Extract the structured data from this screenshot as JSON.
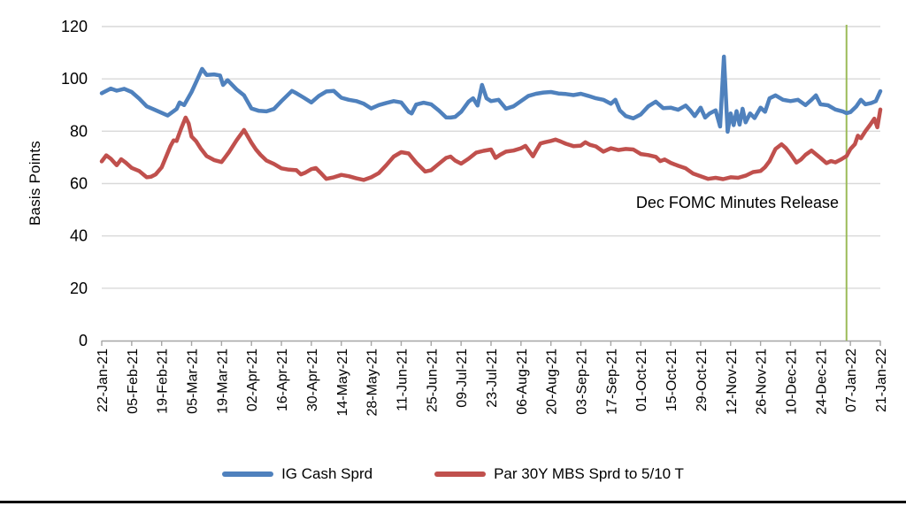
{
  "chart_data": {
    "type": "line",
    "title": "",
    "ylabel": "Basis Points",
    "ylim": [
      0,
      120
    ],
    "y_ticks": [
      0,
      20,
      40,
      60,
      80,
      100,
      120
    ],
    "grid": "horizontal",
    "legend_position": "bottom",
    "x_range_weeks": [
      0,
      52
    ],
    "x_tick_labels": [
      "22-Jan-21",
      "05-Feb-21",
      "19-Feb-21",
      "05-Mar-21",
      "19-Mar-21",
      "02-Apr-21",
      "16-Apr-21",
      "30-Apr-21",
      "14-May-21",
      "28-May-21",
      "11-Jun-21",
      "25-Jun-21",
      "09-Jul-21",
      "23-Jul-21",
      "06-Aug-21",
      "20-Aug-21",
      "03-Sep-21",
      "17-Sep-21",
      "01-Oct-21",
      "15-Oct-21",
      "29-Oct-21",
      "12-Nov-21",
      "26-Nov-21",
      "10-Dec-21",
      "24-Dec-21",
      "07-Jan-22",
      "21-Jan-22"
    ],
    "annotation": {
      "text": "Dec FOMC Minutes Release",
      "line_x_week": 49.74,
      "line_color": "#9BBB59"
    },
    "colors": {
      "gridline": "#D9D9D9",
      "axis": "#A6A6A6",
      "tick": "#A6A6A6",
      "text": "#000000",
      "background": "#FFFFFF"
    },
    "series": [
      {
        "name": "IG Cash Sprd",
        "color": "#4F81BD",
        "points": [
          [
            0,
            94.5
          ],
          [
            0.6,
            96.3
          ],
          [
            1,
            95.5
          ],
          [
            1.5,
            96.2
          ],
          [
            2,
            95
          ],
          [
            2.5,
            92.5
          ],
          [
            3,
            89.5
          ],
          [
            3.5,
            88.3
          ],
          [
            4,
            87
          ],
          [
            4.4,
            86
          ],
          [
            5,
            88.5
          ],
          [
            5.2,
            91
          ],
          [
            5.5,
            90
          ],
          [
            6,
            95
          ],
          [
            6.4,
            100
          ],
          [
            6.7,
            103.8
          ],
          [
            7,
            101.5
          ],
          [
            7.5,
            101.7
          ],
          [
            7.9,
            101.3
          ],
          [
            8.1,
            97.7
          ],
          [
            8.4,
            99.5
          ],
          [
            9,
            96
          ],
          [
            9.5,
            93.7
          ],
          [
            10,
            88.7
          ],
          [
            10.5,
            87.8
          ],
          [
            11,
            87.6
          ],
          [
            11.5,
            88.5
          ],
          [
            12,
            91.5
          ],
          [
            12.7,
            95.4
          ],
          [
            13,
            94.5
          ],
          [
            13.5,
            92.8
          ],
          [
            14,
            91
          ],
          [
            14.5,
            93.5
          ],
          [
            15,
            95.2
          ],
          [
            15.5,
            95.4
          ],
          [
            16,
            92.8
          ],
          [
            16.5,
            92
          ],
          [
            17,
            91.5
          ],
          [
            17.5,
            90.5
          ],
          [
            18,
            88.7
          ],
          [
            18.5,
            90
          ],
          [
            19,
            90.8
          ],
          [
            19.5,
            91.5
          ],
          [
            20,
            91
          ],
          [
            20.5,
            87.4
          ],
          [
            20.7,
            86.8
          ],
          [
            21,
            90.2
          ],
          [
            21.5,
            90.9
          ],
          [
            22,
            90.3
          ],
          [
            22.5,
            88
          ],
          [
            23,
            85.3
          ],
          [
            23.3,
            85.2
          ],
          [
            23.6,
            85.5
          ],
          [
            24,
            87.4
          ],
          [
            24.5,
            91.3
          ],
          [
            24.8,
            92.6
          ],
          [
            25.1,
            89.8
          ],
          [
            25.4,
            97.7
          ],
          [
            25.7,
            92.6
          ],
          [
            26,
            91.5
          ],
          [
            26.5,
            92
          ],
          [
            27,
            88.6
          ],
          [
            27.5,
            89.5
          ],
          [
            28,
            91.5
          ],
          [
            28.5,
            93.5
          ],
          [
            29,
            94.3
          ],
          [
            29.5,
            94.8
          ],
          [
            30,
            95
          ],
          [
            30.5,
            94.4
          ],
          [
            31,
            94.2
          ],
          [
            31.5,
            93.8
          ],
          [
            32,
            94.3
          ],
          [
            32.5,
            93.5
          ],
          [
            33,
            92.6
          ],
          [
            33.5,
            92
          ],
          [
            34,
            90.5
          ],
          [
            34.3,
            92
          ],
          [
            34.6,
            88
          ],
          [
            35,
            85.8
          ],
          [
            35.5,
            84.9
          ],
          [
            36,
            86.4
          ],
          [
            36.5,
            89.5
          ],
          [
            37,
            91.3
          ],
          [
            37.5,
            88.8
          ],
          [
            38,
            89
          ],
          [
            38.5,
            88.2
          ],
          [
            39,
            89.8
          ],
          [
            39.3,
            88
          ],
          [
            39.6,
            85.8
          ],
          [
            40,
            89
          ],
          [
            40.3,
            85.2
          ],
          [
            40.6,
            86.8
          ],
          [
            41,
            88
          ],
          [
            41.3,
            81.8
          ],
          [
            41.55,
            108.5
          ],
          [
            41.8,
            79.8
          ],
          [
            42,
            86.8
          ],
          [
            42.2,
            82.3
          ],
          [
            42.4,
            87.7
          ],
          [
            42.6,
            82.5
          ],
          [
            42.8,
            88.6
          ],
          [
            43,
            83.4
          ],
          [
            43.3,
            86.8
          ],
          [
            43.6,
            85
          ],
          [
            44,
            89
          ],
          [
            44.3,
            87.4
          ],
          [
            44.6,
            92.6
          ],
          [
            45,
            93.7
          ],
          [
            45.5,
            92
          ],
          [
            46,
            91.5
          ],
          [
            46.5,
            92
          ],
          [
            47,
            90
          ],
          [
            47.4,
            92
          ],
          [
            47.7,
            93.7
          ],
          [
            48,
            90.3
          ],
          [
            48.5,
            89.9
          ],
          [
            49,
            88.3
          ],
          [
            49.5,
            87.5
          ],
          [
            49.74,
            86.9
          ],
          [
            50,
            87.3
          ],
          [
            50.4,
            89.5
          ],
          [
            50.7,
            92
          ],
          [
            51,
            90.3
          ],
          [
            51.4,
            90.8
          ],
          [
            51.7,
            91.5
          ],
          [
            52,
            95.3
          ]
        ]
      },
      {
        "name": "Par 30Y MBS Sprd to 5/10 T",
        "color": "#C0504D",
        "points": [
          [
            0,
            68.5
          ],
          [
            0.3,
            70.8
          ],
          [
            0.6,
            69.5
          ],
          [
            1,
            67
          ],
          [
            1.3,
            69.3
          ],
          [
            1.6,
            68
          ],
          [
            2,
            66
          ],
          [
            2.5,
            64.8
          ],
          [
            3,
            62.4
          ],
          [
            3.3,
            62.6
          ],
          [
            3.6,
            63.5
          ],
          [
            4,
            66.2
          ],
          [
            4.3,
            70.3
          ],
          [
            4.6,
            74.4
          ],
          [
            4.8,
            76.5
          ],
          [
            5,
            76.3
          ],
          [
            5.3,
            81
          ],
          [
            5.6,
            85.2
          ],
          [
            5.8,
            83
          ],
          [
            6,
            78
          ],
          [
            6.3,
            76.2
          ],
          [
            6.6,
            73.5
          ],
          [
            7,
            70.5
          ],
          [
            7.5,
            69
          ],
          [
            8,
            68.2
          ],
          [
            8.5,
            72
          ],
          [
            9,
            76.5
          ],
          [
            9.5,
            80.5
          ],
          [
            10,
            75.6
          ],
          [
            10.3,
            73
          ],
          [
            10.6,
            71
          ],
          [
            11,
            68.8
          ],
          [
            11.5,
            67.5
          ],
          [
            12,
            65.8
          ],
          [
            12.5,
            65.3
          ],
          [
            13,
            65.1
          ],
          [
            13.3,
            63.5
          ],
          [
            13.6,
            64.2
          ],
          [
            14,
            65.5
          ],
          [
            14.3,
            65.9
          ],
          [
            14.6,
            64.2
          ],
          [
            15,
            61.8
          ],
          [
            15.5,
            62.4
          ],
          [
            16,
            63.3
          ],
          [
            16.5,
            62.8
          ],
          [
            17,
            62
          ],
          [
            17.5,
            61.4
          ],
          [
            18,
            62.4
          ],
          [
            18.5,
            64
          ],
          [
            19,
            67
          ],
          [
            19.5,
            70.3
          ],
          [
            20,
            72
          ],
          [
            20.5,
            71.5
          ],
          [
            21,
            68
          ],
          [
            21.6,
            64.6
          ],
          [
            22,
            65.1
          ],
          [
            22.5,
            67.5
          ],
          [
            23,
            69.8
          ],
          [
            23.3,
            70.3
          ],
          [
            23.6,
            68.8
          ],
          [
            24,
            67.6
          ],
          [
            24.5,
            69.5
          ],
          [
            25,
            71.8
          ],
          [
            25.5,
            72.5
          ],
          [
            26,
            73
          ],
          [
            26.3,
            69.8
          ],
          [
            26.6,
            71
          ],
          [
            27,
            72.2
          ],
          [
            27.5,
            72.6
          ],
          [
            28,
            73.5
          ],
          [
            28.3,
            74.4
          ],
          [
            28.8,
            70.4
          ],
          [
            29,
            72.5
          ],
          [
            29.3,
            75.3
          ],
          [
            29.6,
            75.8
          ],
          [
            30,
            76.3
          ],
          [
            30.3,
            76.8
          ],
          [
            30.6,
            76.2
          ],
          [
            31,
            75.2
          ],
          [
            31.5,
            74.3
          ],
          [
            32,
            74.5
          ],
          [
            32.3,
            75.8
          ],
          [
            32.6,
            74.8
          ],
          [
            33,
            74.2
          ],
          [
            33.5,
            72.2
          ],
          [
            34,
            73.5
          ],
          [
            34.5,
            72.8
          ],
          [
            35,
            73.2
          ],
          [
            35.5,
            73
          ],
          [
            36,
            71.3
          ],
          [
            36.5,
            70.9
          ],
          [
            37,
            70.2
          ],
          [
            37.3,
            68.6
          ],
          [
            37.6,
            69.2
          ],
          [
            38,
            67.9
          ],
          [
            38.5,
            66.8
          ],
          [
            39,
            65.8
          ],
          [
            39.5,
            63.8
          ],
          [
            40,
            62.8
          ],
          [
            40.5,
            61.8
          ],
          [
            41,
            62.2
          ],
          [
            41.5,
            61.7
          ],
          [
            42,
            62.4
          ],
          [
            42.5,
            62.2
          ],
          [
            43,
            63
          ],
          [
            43.5,
            64.4
          ],
          [
            44,
            64.8
          ],
          [
            44.3,
            66.3
          ],
          [
            44.6,
            68.6
          ],
          [
            45,
            73.2
          ],
          [
            45.4,
            75
          ],
          [
            45.7,
            73.5
          ],
          [
            46,
            71.3
          ],
          [
            46.4,
            68
          ],
          [
            46.7,
            69.2
          ],
          [
            47,
            71
          ],
          [
            47.4,
            72.6
          ],
          [
            48,
            69.8
          ],
          [
            48.4,
            67.8
          ],
          [
            48.7,
            68.6
          ],
          [
            49,
            68.1
          ],
          [
            49.4,
            69.3
          ],
          [
            49.74,
            70.5
          ],
          [
            50,
            73.2
          ],
          [
            50.3,
            75
          ],
          [
            50.5,
            78.3
          ],
          [
            50.7,
            77.3
          ],
          [
            51,
            80
          ],
          [
            51.3,
            82.3
          ],
          [
            51.6,
            84.8
          ],
          [
            51.8,
            81.5
          ],
          [
            52,
            88.3
          ]
        ]
      }
    ]
  }
}
